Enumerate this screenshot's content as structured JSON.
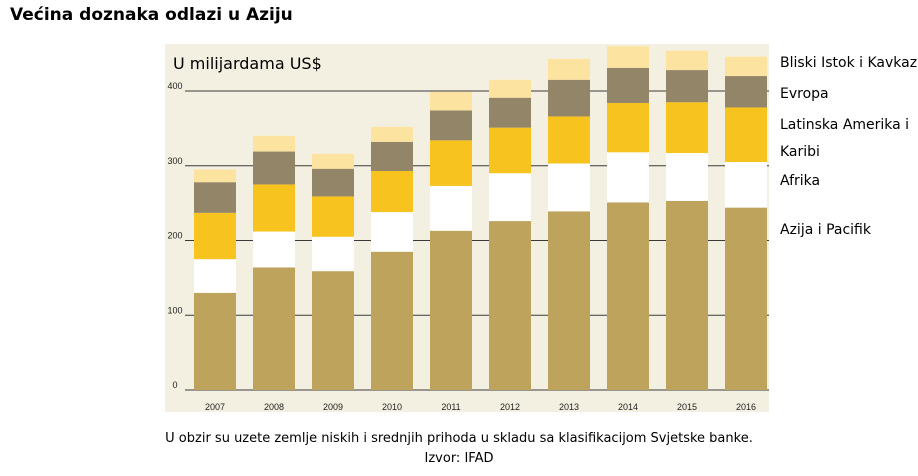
{
  "title": "Većina doznaka odlazi u Aziju",
  "footnote": "U obzir su uzete zemlje niskih i srednjih prihoda u skladu sa klasifikacijom Svjetske banke.",
  "source": "Izvor: IFAD",
  "legend": [
    "Bliski Istok i Kavkaz",
    "Evropa",
    "Latinska Amerika i",
    "Karibi",
    "Afrika",
    "Azija i Pacifik"
  ],
  "colors": {
    "panel": "#f4f0e1",
    "Azija i Pacifik": "#bea35c",
    "Afrika": "#ffffff",
    "Latinska Amerika i Karibi": "#f7c31f",
    "Evropa": "#938568",
    "Bliski Istok i Kavkaz": "#fde3a0"
  },
  "chart_data": {
    "type": "bar",
    "stacked": true,
    "title": "Većina doznaka odlazi u Aziju",
    "unit_label": "U milijardama US$",
    "categories": [
      "2007",
      "2008",
      "2009",
      "2010",
      "2011",
      "2012",
      "2013",
      "2014",
      "2015",
      "2016"
    ],
    "yticks": [
      0,
      100,
      200,
      300,
      400
    ],
    "ylim": [
      0,
      450
    ],
    "grid": true,
    "series": [
      {
        "name": "Azija i Pacifik",
        "values": [
          130,
          164,
          159,
          185,
          213,
          226,
          239,
          251,
          253,
          244
        ]
      },
      {
        "name": "Afrika",
        "values": [
          45,
          48,
          46,
          53,
          60,
          64,
          64,
          67,
          64,
          61
        ]
      },
      {
        "name": "Latinska Amerika i Karibi",
        "values": [
          62,
          63,
          54,
          55,
          61,
          61,
          63,
          66,
          68,
          73
        ]
      },
      {
        "name": "Evropa",
        "values": [
          41,
          44,
          37,
          39,
          40,
          40,
          49,
          47,
          43,
          42
        ]
      },
      {
        "name": "Bliski Istok i Kavkaz",
        "values": [
          17,
          21,
          20,
          20,
          25,
          24,
          28,
          29,
          26,
          26
        ]
      }
    ]
  }
}
